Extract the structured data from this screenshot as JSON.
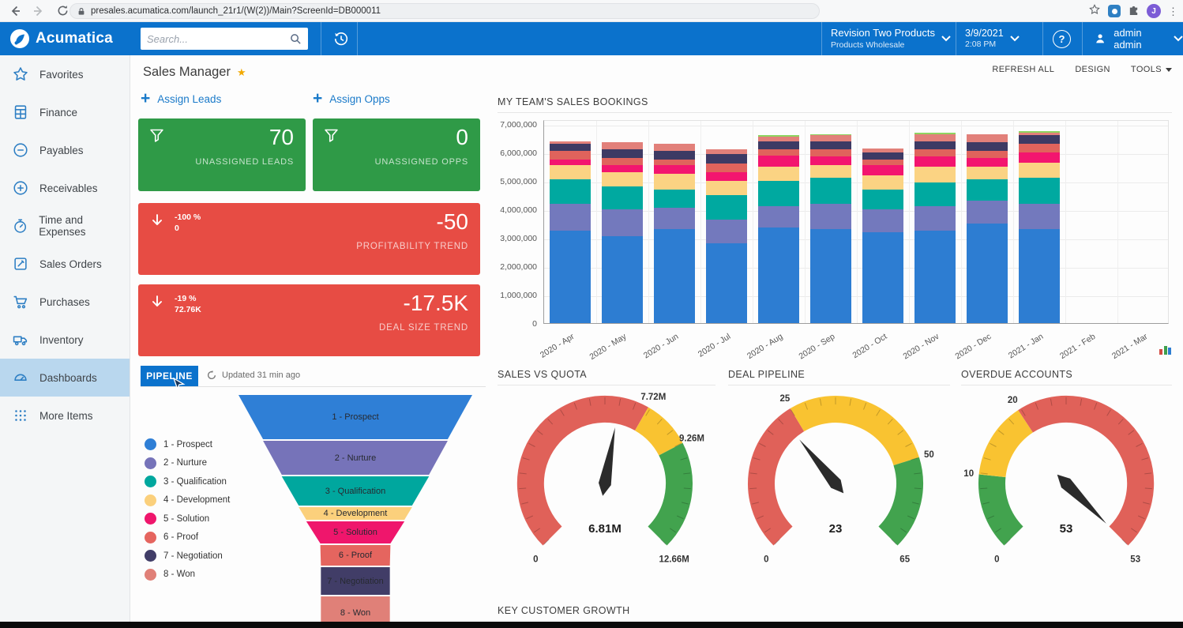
{
  "browser": {
    "url": "presales.acumatica.com/launch_21r1/(W(2))/Main?ScreenId=DB000011",
    "avatar_letter": "J"
  },
  "header": {
    "logo": "Acumatica",
    "search_placeholder": "Search...",
    "tenant": "Revision Two Products",
    "tenant_sub": "Products Wholesale",
    "date": "3/9/2021",
    "time": "2:08 PM",
    "user": "admin admin"
  },
  "toolbar": {
    "refresh_all": "REFRESH ALL",
    "design": "DESIGN",
    "tools": "TOOLS"
  },
  "page": {
    "title": "Sales Manager"
  },
  "sidebar": {
    "items": [
      {
        "label": "Favorites",
        "icon": "star",
        "selected": false
      },
      {
        "label": "Finance",
        "icon": "calculator",
        "selected": false
      },
      {
        "label": "Payables",
        "icon": "minus-circle",
        "selected": false
      },
      {
        "label": "Receivables",
        "icon": "plus-circle",
        "selected": false
      },
      {
        "label": "Time and Expenses",
        "icon": "stopwatch",
        "selected": false
      },
      {
        "label": "Sales Orders",
        "icon": "pencil-square",
        "selected": false
      },
      {
        "label": "Purchases",
        "icon": "cart",
        "selected": false
      },
      {
        "label": "Inventory",
        "icon": "truck",
        "selected": false
      },
      {
        "label": "Dashboards",
        "icon": "gauge",
        "selected": true
      },
      {
        "label": "More Items",
        "icon": "grid-dots",
        "selected": false
      }
    ]
  },
  "actions": {
    "assign_leads": "Assign Leads",
    "assign_opps": "Assign Opps"
  },
  "kpis": [
    {
      "value": "70",
      "label": "UNASSIGNED LEADS",
      "color": "#2f9a47",
      "icon": "funnel"
    },
    {
      "value": "0",
      "label": "UNASSIGNED OPPS",
      "color": "#2f9a47",
      "icon": "funnel"
    },
    {
      "value": "-50",
      "label": "PROFITABILITY TREND",
      "delta_pct": "-100 %",
      "delta_abs": "0",
      "color": "#e74c44",
      "icon": "arrow-down"
    },
    {
      "value": "-17.5K",
      "label": "DEAL SIZE TREND",
      "delta_pct": "-19 %",
      "delta_abs": "72.76K",
      "color": "#e74c44",
      "icon": "arrow-down"
    }
  ],
  "pipeline": {
    "tab_label": "PIPELINE",
    "updated": "Updated 31 min ago",
    "chart_data": {
      "type": "funnel",
      "stages": [
        {
          "label": "1 - Prospect",
          "color": "#2f7fd6"
        },
        {
          "label": "2 - Nurture",
          "color": "#7673b9"
        },
        {
          "label": "3 - Qualification",
          "color": "#00a79e"
        },
        {
          "label": "4 - Development",
          "color": "#fbd07c"
        },
        {
          "label": "5 - Solution",
          "color": "#ef166c"
        },
        {
          "label": "6 - Proof",
          "color": "#e5655f"
        },
        {
          "label": "7 - Negotiation",
          "color": "#413d67"
        },
        {
          "label": "8 - Won",
          "color": "#e08078"
        }
      ]
    }
  },
  "bookings": {
    "title": "MY TEAM'S SALES BOOKINGS",
    "chart_data": {
      "type": "stacked-bar",
      "categories": [
        "2020 - Apr",
        "2020 - May",
        "2020 - Jun",
        "2020 - Jul",
        "2020 - Aug",
        "2020 - Sep",
        "2020 - Oct",
        "2020 - Nov",
        "2020 - Dec",
        "2021 - Jan",
        "2021 - Feb",
        "2021 - Mar"
      ],
      "ylim": [
        0,
        7000000
      ],
      "yticks": [
        "7,000,000",
        "6,000,000",
        "5,000,000",
        "4,000,000",
        "3,000,000",
        "2,000,000",
        "1,000,000",
        "0"
      ],
      "grid": true,
      "series": [
        {
          "name": "1 - Prospect",
          "color": "#2d7dd2",
          "values": [
            3250000,
            3050000,
            3300000,
            2800000,
            3350000,
            3300000,
            3200000,
            3250000,
            3500000,
            3300000,
            0,
            0
          ]
        },
        {
          "name": "2 - Nurture",
          "color": "#7379bd",
          "values": [
            950000,
            950000,
            750000,
            850000,
            750000,
            900000,
            800000,
            850000,
            800000,
            900000,
            0,
            0
          ]
        },
        {
          "name": "3 - Qualification",
          "color": "#00a9a0",
          "values": [
            850000,
            800000,
            650000,
            850000,
            900000,
            900000,
            700000,
            850000,
            750000,
            900000,
            0,
            0
          ]
        },
        {
          "name": "4 - Development",
          "color": "#fbd383",
          "values": [
            500000,
            500000,
            550000,
            500000,
            500000,
            450000,
            500000,
            550000,
            450000,
            550000,
            0,
            0
          ]
        },
        {
          "name": "5 - Solution",
          "color": "#f3156f",
          "values": [
            200000,
            250000,
            300000,
            300000,
            400000,
            300000,
            350000,
            350000,
            300000,
            350000,
            0,
            0
          ]
        },
        {
          "name": "6 - Proof",
          "color": "#e0635c",
          "values": [
            300000,
            250000,
            200000,
            300000,
            200000,
            250000,
            200000,
            250000,
            250000,
            300000,
            0,
            0
          ]
        },
        {
          "name": "7 - Negotiation",
          "color": "#3d3a64",
          "values": [
            250000,
            300000,
            300000,
            350000,
            300000,
            300000,
            250000,
            300000,
            300000,
            300000,
            0,
            0
          ]
        },
        {
          "name": "8 - Won",
          "color": "#e2807a",
          "values": [
            100000,
            250000,
            250000,
            150000,
            150000,
            200000,
            150000,
            250000,
            300000,
            100000,
            0,
            0
          ]
        },
        {
          "name": "other",
          "color": "#8ed561",
          "values": [
            0,
            0,
            0,
            0,
            50000,
            50000,
            0,
            50000,
            0,
            50000,
            0,
            0
          ]
        }
      ]
    }
  },
  "gauges": [
    {
      "title": "SALES VS QUOTA",
      "chart_data": {
        "type": "gauge",
        "min": 0,
        "max": 12.66,
        "value": 6.81,
        "value_label": "6.81M",
        "bands": [
          {
            "to": 7.72,
            "color": "#e06159"
          },
          {
            "to": 9.26,
            "color": "#f9c331"
          },
          {
            "to": 12.66,
            "color": "#42a34e"
          }
        ],
        "labels": [
          {
            "v": 0,
            "t": "0"
          },
          {
            "v": 7.72,
            "t": "7.72M"
          },
          {
            "v": 9.26,
            "t": "9.26M"
          },
          {
            "v": 12.66,
            "t": "12.66M"
          }
        ]
      }
    },
    {
      "title": "DEAL PIPELINE",
      "chart_data": {
        "type": "gauge",
        "min": 0,
        "max": 65,
        "value": 23,
        "value_label": "23",
        "bands": [
          {
            "to": 25,
            "color": "#e06159"
          },
          {
            "to": 50,
            "color": "#f9c331"
          },
          {
            "to": 65,
            "color": "#42a34e"
          }
        ],
        "labels": [
          {
            "v": 0,
            "t": "0"
          },
          {
            "v": 25,
            "t": "25"
          },
          {
            "v": 50,
            "t": "50"
          },
          {
            "v": 65,
            "t": "65"
          }
        ]
      }
    },
    {
      "title": "OVERDUE ACCOUNTS",
      "chart_data": {
        "type": "gauge",
        "min": 0,
        "max": 53,
        "value": 53,
        "value_label": "53",
        "bands": [
          {
            "to": 10,
            "color": "#42a34e"
          },
          {
            "to": 20,
            "color": "#f9c331"
          },
          {
            "to": 53,
            "color": "#e06159"
          }
        ],
        "labels": [
          {
            "v": 0,
            "t": "0"
          },
          {
            "v": 10,
            "t": "10"
          },
          {
            "v": 20,
            "t": "20"
          },
          {
            "v": 53,
            "t": "53"
          }
        ]
      }
    }
  ],
  "sections": {
    "key_customer_growth": "KEY CUSTOMER GROWTH"
  }
}
